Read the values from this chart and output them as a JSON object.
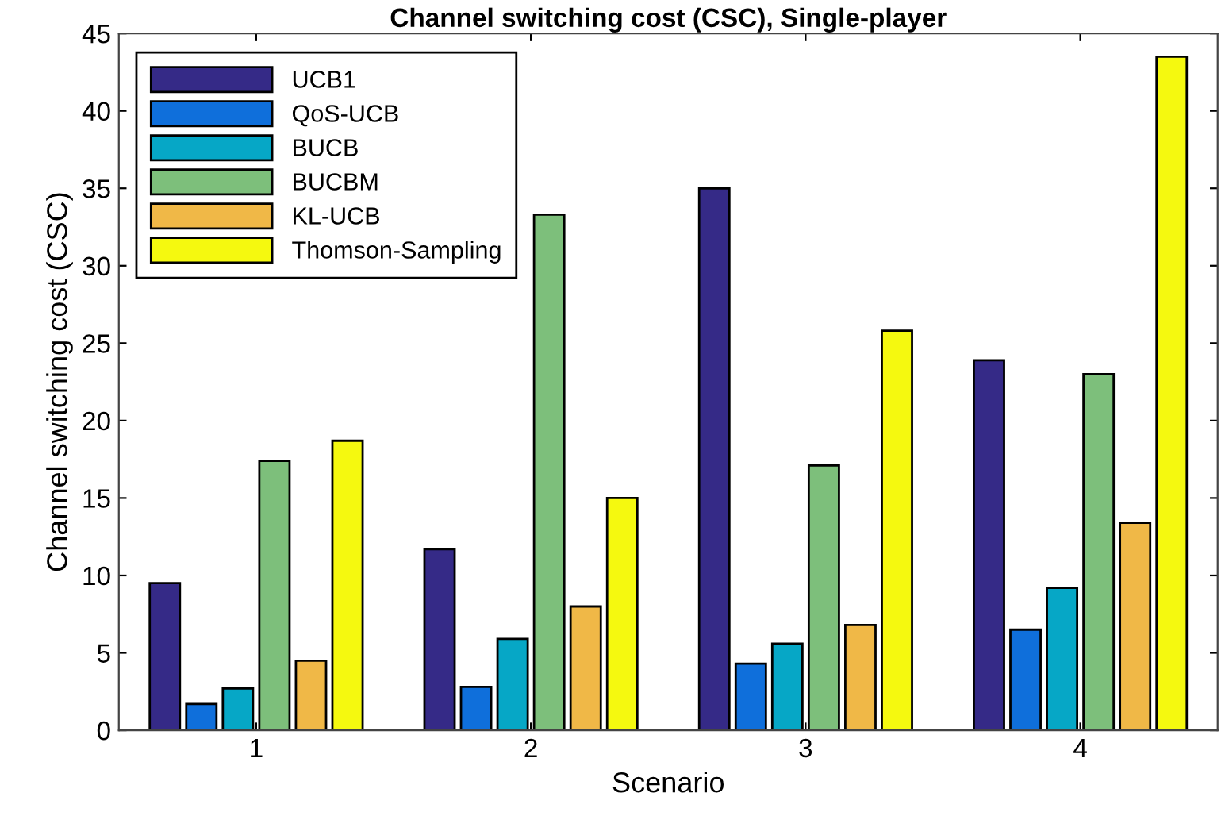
{
  "chart_data": {
    "type": "bar",
    "title": "Channel switching cost (CSC), Single-player",
    "xlabel": "Scenario",
    "ylabel": "Channel switching cost (CSC)",
    "categories": [
      "1",
      "2",
      "3",
      "4"
    ],
    "series": [
      {
        "name": "UCB1",
        "color": "#352a87",
        "values": [
          9.5,
          11.7,
          35.0,
          23.9
        ]
      },
      {
        "name": "QoS-UCB",
        "color": "#0f6fdb",
        "values": [
          1.7,
          2.8,
          4.3,
          6.5
        ]
      },
      {
        "name": "BUCB",
        "color": "#06a7c6",
        "values": [
          2.7,
          5.9,
          5.6,
          9.2
        ]
      },
      {
        "name": "BUCBM",
        "color": "#7dbf7b",
        "values": [
          17.4,
          33.3,
          17.1,
          23.0
        ]
      },
      {
        "name": "KL-UCB",
        "color": "#f0b847",
        "values": [
          4.5,
          8.0,
          6.8,
          13.4
        ]
      },
      {
        "name": "Thomson-Sampling",
        "color": "#f5f90f",
        "values": [
          18.7,
          15.0,
          25.8,
          43.5
        ]
      }
    ],
    "ylim": [
      0,
      45
    ],
    "yticks": [
      0,
      5,
      10,
      15,
      20,
      25,
      30,
      35,
      40,
      45
    ],
    "grid": false,
    "legend": "top left"
  }
}
